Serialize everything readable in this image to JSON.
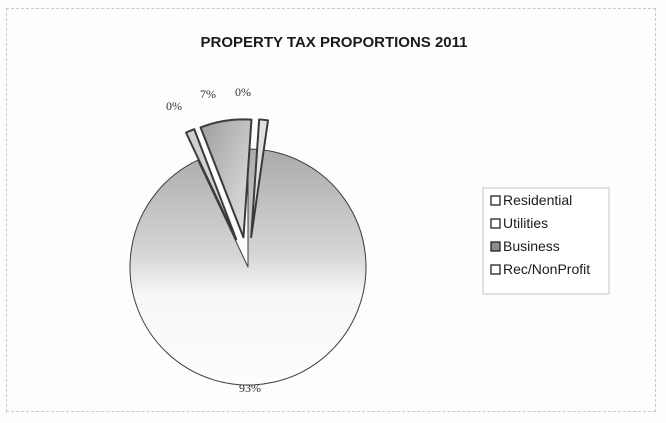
{
  "chart_data": {
    "type": "pie",
    "title": "PROPERTY TAX PROPORTIONS 2011",
    "slices": [
      {
        "name": "Residential",
        "value": 93,
        "label": "93%"
      },
      {
        "name": "Utilities",
        "value": 0,
        "label": "0%"
      },
      {
        "name": "Business",
        "value": 7,
        "label": "7%"
      },
      {
        "name": "Rec/NonProfit",
        "value": 0,
        "label": "0%"
      }
    ],
    "legend_position": "right",
    "colors": {
      "residential_light": "#fbfbf9",
      "residential_dark": "#a9a9a9",
      "business_light": "#a6a6a6",
      "business_dark": "#e4e4e4",
      "outline": "#3b3b3b"
    }
  }
}
